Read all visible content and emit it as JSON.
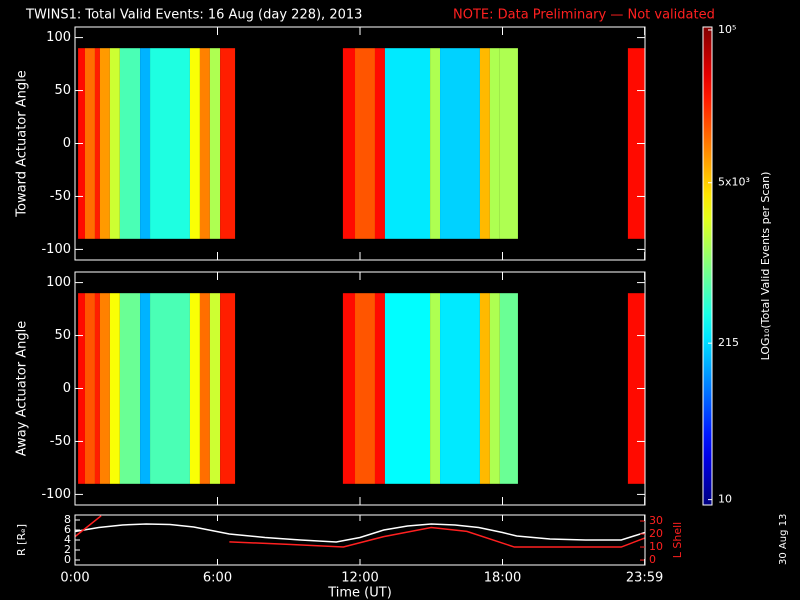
{
  "title": "TWINS1: Total Valid Events: 16 Aug (day 228), 2013",
  "note": "NOTE: Data Preliminary — Not validated",
  "date_stamp": "30 Aug 13",
  "colorbar": {
    "label": "LOG₁₀(Total Valid Events per Scan)",
    "log": true,
    "clim": [
      9,
      106000
    ],
    "ticks": [
      {
        "value": 100000,
        "label": "10⁵"
      },
      {
        "value": 5000,
        "label": "5x10³"
      },
      215,
      10
    ],
    "colormap": "jet"
  },
  "chart_data": [
    {
      "type": "heatmap",
      "y_label": "Toward Actuator Angle",
      "xlim": [
        0,
        24
      ],
      "ylim": [
        -110,
        110
      ],
      "yticks": [
        100,
        50,
        0,
        -50,
        -100
      ],
      "angle_range": [
        -90,
        90
      ],
      "time_bins": [
        0.13,
        0.42,
        0.84,
        1.05,
        1.47,
        1.89,
        2.74,
        3.16,
        4.84,
        5.26,
        5.68,
        6.11,
        6.74,
        11.28,
        11.79,
        12.63,
        13.05,
        14.95,
        15.37,
        17.05,
        17.47,
        17.89,
        18.65,
        23.28,
        24
      ],
      "values": [
        30000,
        12000,
        25000,
        8000,
        2000,
        600,
        150,
        400,
        3000,
        10000,
        1500,
        25000,
        null,
        30000,
        15000,
        30000,
        250,
        1500,
        200,
        6000,
        1500,
        1500,
        null,
        30000
      ]
    },
    {
      "type": "heatmap",
      "y_label": "Away Actuator Angle",
      "xlim": [
        0,
        24
      ],
      "ylim": [
        -110,
        110
      ],
      "yticks": [
        100,
        50,
        0,
        -50,
        -100
      ],
      "angle_range": [
        -90,
        90
      ],
      "time_bins": [
        0.13,
        0.42,
        0.84,
        1.05,
        1.47,
        1.89,
        2.74,
        3.16,
        4.84,
        5.26,
        5.68,
        6.11,
        6.74,
        11.28,
        11.79,
        12.63,
        13.05,
        14.95,
        15.37,
        17.05,
        17.47,
        17.89,
        18.65,
        23.28,
        24
      ],
      "values": [
        30000,
        15000,
        25000,
        10000,
        3000,
        800,
        150,
        600,
        3000,
        12000,
        2000,
        25000,
        null,
        30000,
        15000,
        30000,
        300,
        1500,
        250,
        6000,
        1500,
        800,
        null,
        30000
      ]
    },
    {
      "type": "line",
      "x_label": "Time (UT)",
      "xlim": [
        0,
        24
      ],
      "xticks": [
        {
          "value": 0,
          "label": "0:00"
        },
        {
          "value": 6,
          "label": "6:00"
        },
        {
          "value": 12,
          "label": "12:00"
        },
        {
          "value": 18,
          "label": "18:00"
        },
        {
          "value": 23.983,
          "label": "23:59"
        }
      ],
      "y_label": "R [Rₑ]",
      "ylim": [
        -1,
        9
      ],
      "yticks": [
        0,
        2,
        4,
        6,
        8
      ],
      "y2_label": "L Shell",
      "y2lim": [
        -3.8,
        34.6
      ],
      "y2ticks": [
        0,
        10,
        20,
        30
      ],
      "series": [
        {
          "color": "#ffffff",
          "x": [
            0,
            1,
            2,
            3,
            4,
            5,
            6.5,
            8,
            9.5,
            11,
            12,
            13,
            14,
            15,
            16,
            17,
            18,
            18.6,
            20,
            21.5,
            23,
            24
          ],
          "values": [
            5.7,
            6.5,
            7,
            7.2,
            7.1,
            6.6,
            5.2,
            4.5,
            4,
            3.6,
            4.5,
            6,
            6.8,
            7.2,
            7,
            6.5,
            5.5,
            4.8,
            4.2,
            4,
            4,
            5.5
          ]
        },
        {
          "color": "#ff2020",
          "axis": "y2",
          "x": [
            0,
            1.1,
            5,
            6.5,
            9,
            11.3,
            13,
            15,
            16.5,
            18.5,
            21,
            23,
            24
          ],
          "values": [
            18,
            34,
            null,
            14,
            12,
            10,
            18,
            25,
            22,
            10,
            10,
            10,
            17
          ]
        }
      ]
    }
  ]
}
